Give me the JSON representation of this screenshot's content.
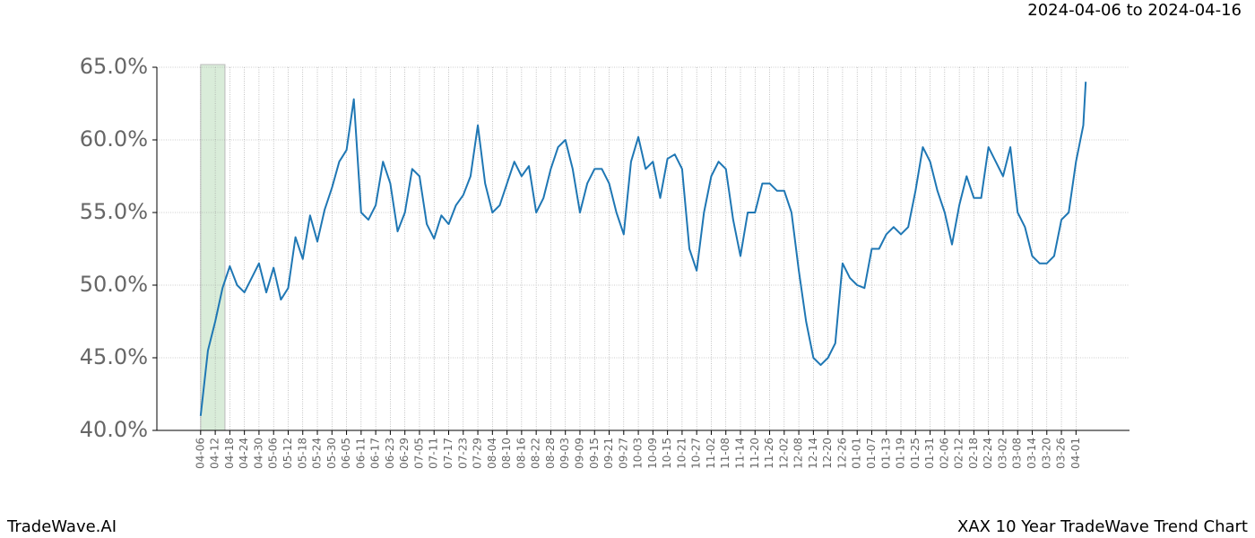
{
  "chart_data": {
    "type": "line",
    "subtitle": "2024-04-06 to 2024-04-16",
    "footer_left": "TradeWave.AI",
    "footer_right": "XAX 10 Year TradeWave Trend Chart",
    "highlight": [
      0,
      10
    ],
    "highlight_color": "#d9ecd9",
    "grid": true,
    "x": [
      0,
      3,
      6,
      9,
      12,
      15,
      18,
      21,
      24,
      27,
      30,
      33,
      36,
      39,
      42,
      45,
      48,
      51,
      54,
      57,
      60,
      63,
      66,
      69,
      72,
      75,
      78,
      81,
      84,
      87,
      90,
      93,
      96,
      99,
      102,
      105,
      108,
      111,
      114,
      117,
      120,
      123,
      126,
      129,
      132,
      135,
      138,
      141,
      144,
      147,
      150,
      153,
      156,
      159,
      162,
      165,
      168,
      171,
      174,
      177,
      180,
      183,
      186,
      189,
      192,
      195,
      198,
      201,
      204,
      207,
      210,
      213,
      216,
      219,
      222,
      225,
      228,
      231,
      234,
      237,
      240,
      243,
      246,
      249,
      252,
      255,
      258,
      261,
      264,
      267,
      270,
      273,
      276,
      279,
      282,
      285,
      288,
      291,
      294,
      297,
      300,
      303,
      306,
      309,
      312,
      315,
      318,
      321,
      324,
      327,
      330,
      333,
      336,
      339,
      342,
      345,
      348,
      351,
      354,
      357,
      360,
      363,
      364
    ],
    "series": [
      {
        "name": "XAX",
        "color": "#1f77b4",
        "values": [
          41.0,
          45.5,
          47.5,
          49.8,
          51.3,
          50.0,
          49.5,
          50.5,
          51.5,
          49.5,
          51.2,
          49.0,
          49.8,
          53.3,
          51.8,
          54.8,
          53.0,
          55.2,
          56.7,
          58.5,
          59.3,
          62.8,
          55.0,
          54.5,
          55.5,
          58.5,
          57.0,
          53.7,
          55.0,
          58.0,
          57.5,
          54.2,
          53.2,
          54.8,
          54.2,
          55.5,
          56.2,
          57.5,
          61.0,
          57.0,
          55.0,
          55.5,
          57.0,
          58.5,
          57.5,
          58.2,
          55.0,
          56.0,
          58.0,
          59.5,
          60.0,
          58.0,
          55.0,
          57.0,
          58.0,
          58.0,
          57.0,
          55.0,
          53.5,
          58.5,
          60.2,
          58.0,
          58.5,
          56.0,
          58.7,
          59.0,
          58.0,
          52.5,
          51.0,
          55.0,
          57.5,
          58.5,
          58.0,
          54.5,
          52.0,
          55.0,
          55.0,
          57.0,
          57.0,
          56.5,
          56.5,
          55.0,
          51.0,
          47.5,
          45.0,
          44.5,
          45.0,
          46.0,
          51.5,
          50.5,
          50.0,
          49.8,
          52.5,
          52.5,
          53.5,
          54.0,
          53.5,
          54.0,
          56.5,
          59.5,
          58.5,
          56.5,
          55.0,
          52.8,
          55.5,
          57.5,
          56.0,
          56.0,
          59.5,
          58.5,
          57.5,
          59.5,
          55.0,
          54.0,
          52.0,
          51.5,
          51.5,
          52.0,
          54.5,
          55.0,
          58.5,
          61.0,
          64.0
        ]
      }
    ],
    "xlim": [
      -18,
      382
    ],
    "xticks": [
      {
        "value": 0,
        "label": "04-06"
      },
      {
        "value": 6,
        "label": "04-12"
      },
      {
        "value": 12,
        "label": "04-18"
      },
      {
        "value": 18,
        "label": "04-24"
      },
      {
        "value": 24,
        "label": "04-30"
      },
      {
        "value": 30,
        "label": "05-06"
      },
      {
        "value": 36,
        "label": "05-12"
      },
      {
        "value": 42,
        "label": "05-18"
      },
      {
        "value": 48,
        "label": "05-24"
      },
      {
        "value": 54,
        "label": "05-30"
      },
      {
        "value": 60,
        "label": "06-05"
      },
      {
        "value": 66,
        "label": "06-11"
      },
      {
        "value": 72,
        "label": "06-17"
      },
      {
        "value": 78,
        "label": "06-23"
      },
      {
        "value": 84,
        "label": "06-29"
      },
      {
        "value": 90,
        "label": "07-05"
      },
      {
        "value": 96,
        "label": "07-11"
      },
      {
        "value": 102,
        "label": "07-17"
      },
      {
        "value": 108,
        "label": "07-23"
      },
      {
        "value": 114,
        "label": "07-29"
      },
      {
        "value": 120,
        "label": "08-04"
      },
      {
        "value": 126,
        "label": "08-10"
      },
      {
        "value": 132,
        "label": "08-16"
      },
      {
        "value": 138,
        "label": "08-22"
      },
      {
        "value": 144,
        "label": "08-28"
      },
      {
        "value": 150,
        "label": "09-03"
      },
      {
        "value": 156,
        "label": "09-09"
      },
      {
        "value": 162,
        "label": "09-15"
      },
      {
        "value": 168,
        "label": "09-21"
      },
      {
        "value": 174,
        "label": "09-27"
      },
      {
        "value": 180,
        "label": "10-03"
      },
      {
        "value": 186,
        "label": "10-09"
      },
      {
        "value": 192,
        "label": "10-15"
      },
      {
        "value": 198,
        "label": "10-21"
      },
      {
        "value": 204,
        "label": "10-27"
      },
      {
        "value": 210,
        "label": "11-02"
      },
      {
        "value": 216,
        "label": "11-08"
      },
      {
        "value": 222,
        "label": "11-14"
      },
      {
        "value": 228,
        "label": "11-20"
      },
      {
        "value": 234,
        "label": "11-26"
      },
      {
        "value": 240,
        "label": "12-02"
      },
      {
        "value": 246,
        "label": "12-08"
      },
      {
        "value": 252,
        "label": "12-14"
      },
      {
        "value": 258,
        "label": "12-20"
      },
      {
        "value": 264,
        "label": "12-26"
      },
      {
        "value": 270,
        "label": "01-01"
      },
      {
        "value": 276,
        "label": "01-07"
      },
      {
        "value": 282,
        "label": "01-13"
      },
      {
        "value": 288,
        "label": "01-19"
      },
      {
        "value": 294,
        "label": "01-25"
      },
      {
        "value": 300,
        "label": "01-31"
      },
      {
        "value": 306,
        "label": "02-06"
      },
      {
        "value": 312,
        "label": "02-12"
      },
      {
        "value": 318,
        "label": "02-18"
      },
      {
        "value": 324,
        "label": "02-24"
      },
      {
        "value": 330,
        "label": "03-02"
      },
      {
        "value": 336,
        "label": "03-08"
      },
      {
        "value": 342,
        "label": "03-14"
      },
      {
        "value": 348,
        "label": "03-20"
      },
      {
        "value": 354,
        "label": "03-26"
      },
      {
        "value": 360,
        "label": "04-01"
      }
    ],
    "ylim": [
      40,
      65
    ],
    "yticks": [
      {
        "value": 40,
        "label": "40.0%"
      },
      {
        "value": 45,
        "label": "45.0%"
      },
      {
        "value": 50,
        "label": "50.0%"
      },
      {
        "value": 55,
        "label": "55.0%"
      },
      {
        "value": 60,
        "label": "60.0%"
      },
      {
        "value": 65,
        "label": "65.0%"
      }
    ]
  }
}
